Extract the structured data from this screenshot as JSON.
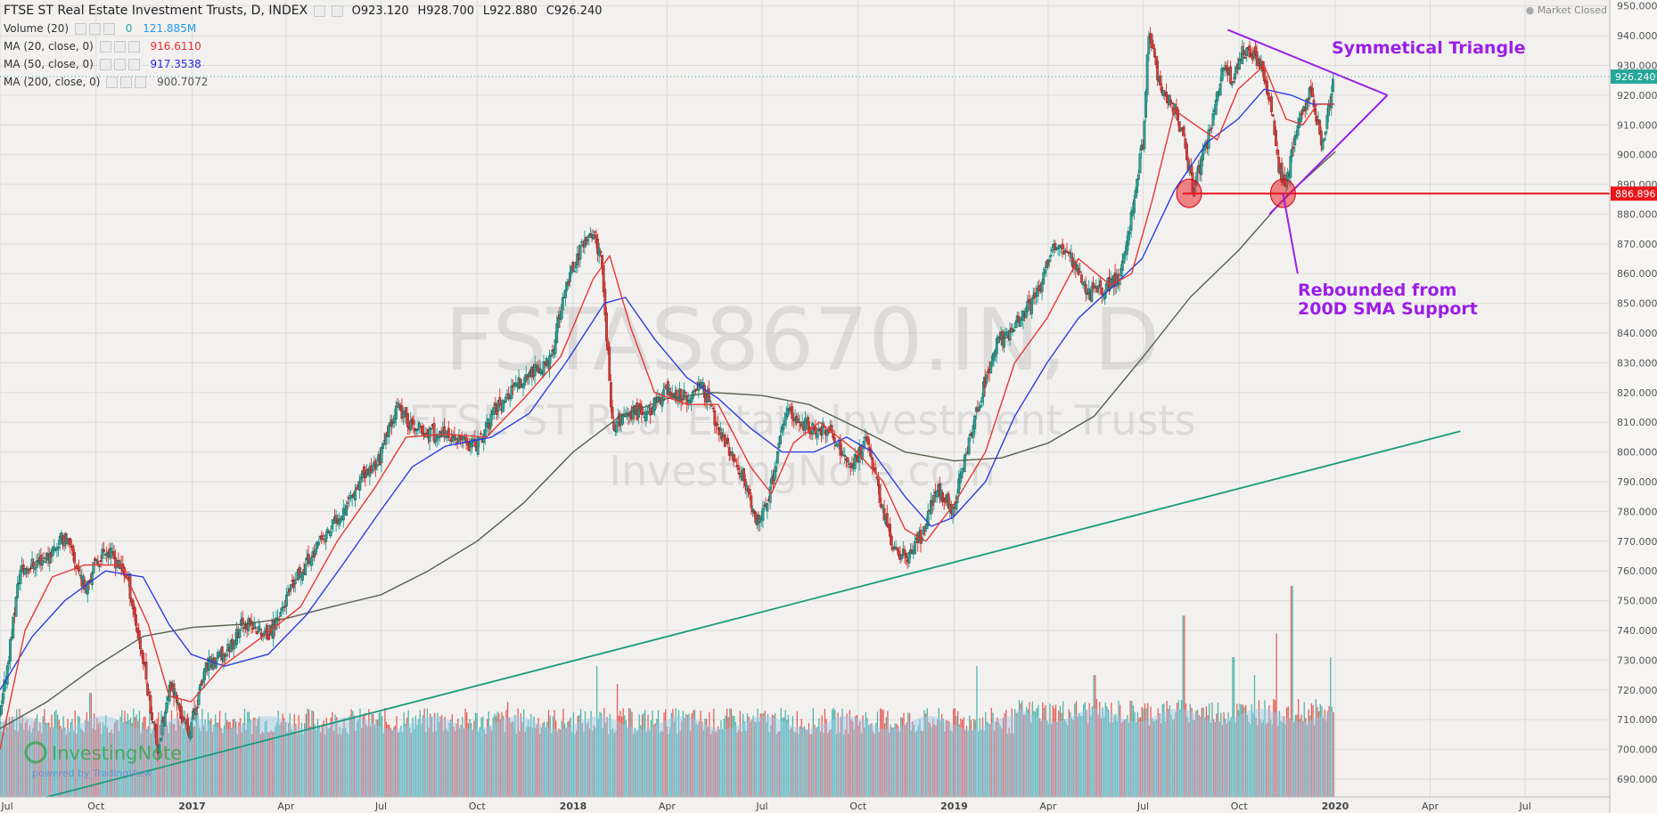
{
  "header": {
    "title": "FTSE ST Real Estate Investment Trusts, D, INDEX",
    "ohlc": [
      "O923.120",
      "H928.700",
      "L922.880",
      "C926.240"
    ],
    "market_status": "Market Closed"
  },
  "legend": [
    {
      "label": "Volume (20)",
      "values": [
        "0",
        "121.885M"
      ],
      "colors": [
        "#26a69a",
        "#2196f3"
      ]
    },
    {
      "label": "MA (20, close, 0)",
      "values": [
        "916.6110"
      ],
      "colors": [
        "#e03030"
      ]
    },
    {
      "label": "MA (50, close, 0)",
      "values": [
        "917.3538"
      ],
      "colors": [
        "#2525e0"
      ]
    },
    {
      "label": "MA (200, close, 0)",
      "values": [
        "900.7072"
      ],
      "colors": [
        "#555555"
      ]
    }
  ],
  "watermark": {
    "symbol": "FSTAS8670.IN, D",
    "name": "FTSE ST Real Estate Investment Trusts",
    "site": "InvestingNote.com"
  },
  "logo": {
    "name": "InvestingNote",
    "sub": "powered by TradingView"
  },
  "annotations": {
    "triangle_label": "Symmetical Triangle",
    "rebound_label": [
      "Rebounded from",
      "200D SMA Support"
    ],
    "support_value": 886.896,
    "current_value": 926.24
  },
  "colors": {
    "up": "#26a69a",
    "down": "#e53935",
    "ma20": "#e53935",
    "ma50": "#2c3ee0",
    "ma200": "#55604f",
    "triangle": "#9b1ee6",
    "support": "#e8151a",
    "trend": "#1a9a7a",
    "volume_ma": "#9ccbe8"
  },
  "chart_data": {
    "type": "candlestick",
    "title": "FTSE ST Real Estate Investment Trusts, D, INDEX",
    "ylim": [
      684,
      952
    ],
    "y_ticks": [
      690,
      700,
      710,
      720,
      730,
      740,
      750,
      760,
      770,
      780,
      790,
      800,
      810,
      820,
      830,
      840,
      850,
      860,
      870,
      880,
      890,
      900,
      910,
      920,
      930,
      940,
      950
    ],
    "x_labels": [
      "Jul",
      "Oct",
      "2017",
      "Apr",
      "Jul",
      "Oct",
      "2018",
      "Apr",
      "Jul",
      "Oct",
      "2019",
      "Apr",
      "Jul",
      "Oct",
      "2020",
      "Apr",
      "Jul"
    ],
    "x_range": [
      "2016-07-01",
      "2020-09-20"
    ],
    "price_path": [
      [
        "2016-07-01",
        710
      ],
      [
        "2016-07-20",
        760
      ],
      [
        "2016-08-15",
        765
      ],
      [
        "2016-09-01",
        772
      ],
      [
        "2016-09-20",
        755
      ],
      [
        "2016-10-10",
        768
      ],
      [
        "2016-10-31",
        758
      ],
      [
        "2016-11-15",
        730
      ],
      [
        "2016-11-29",
        700
      ],
      [
        "2016-12-12",
        722
      ],
      [
        "2016-12-28",
        705
      ],
      [
        "2017-01-15",
        728
      ],
      [
        "2017-02-01",
        732
      ],
      [
        "2017-02-20",
        743
      ],
      [
        "2017-03-15",
        738
      ],
      [
        "2017-04-15",
        760
      ],
      [
        "2017-05-15",
        775
      ],
      [
        "2017-06-10",
        790
      ],
      [
        "2017-06-30",
        798
      ],
      [
        "2017-07-15",
        815
      ],
      [
        "2017-08-01",
        808
      ],
      [
        "2017-09-01",
        805
      ],
      [
        "2017-10-01",
        802
      ],
      [
        "2017-10-20",
        815
      ],
      [
        "2017-11-15",
        825
      ],
      [
        "2017-12-10",
        830
      ],
      [
        "2017-12-25",
        855
      ],
      [
        "2018-01-10",
        870
      ],
      [
        "2018-01-20",
        873
      ],
      [
        "2018-01-28",
        866
      ],
      [
        "2018-02-08",
        808
      ],
      [
        "2018-02-20",
        812
      ],
      [
        "2018-03-15",
        814
      ],
      [
        "2018-04-01",
        821
      ],
      [
        "2018-04-20",
        818
      ],
      [
        "2018-05-05",
        822
      ],
      [
        "2018-05-25",
        804
      ],
      [
        "2018-06-15",
        790
      ],
      [
        "2018-06-26",
        776
      ],
      [
        "2018-07-08",
        785
      ],
      [
        "2018-07-25",
        815
      ],
      [
        "2018-08-15",
        808
      ],
      [
        "2018-09-01",
        808
      ],
      [
        "2018-09-25",
        795
      ],
      [
        "2018-10-10",
        805
      ],
      [
        "2018-10-25",
        780
      ],
      [
        "2018-11-05",
        766
      ],
      [
        "2018-11-20",
        765
      ],
      [
        "2018-12-05",
        775
      ],
      [
        "2018-12-15",
        788
      ],
      [
        "2018-12-31",
        781
      ],
      [
        "2019-01-20",
        810
      ],
      [
        "2019-02-10",
        836
      ],
      [
        "2019-03-05",
        845
      ],
      [
        "2019-03-25",
        855
      ],
      [
        "2019-04-05",
        870
      ],
      [
        "2019-04-20",
        868
      ],
      [
        "2019-05-10",
        853
      ],
      [
        "2019-05-25",
        855
      ],
      [
        "2019-06-10",
        860
      ],
      [
        "2019-06-20",
        880
      ],
      [
        "2019-07-01",
        905
      ],
      [
        "2019-07-06",
        940
      ],
      [
        "2019-07-20",
        920
      ],
      [
        "2019-08-01",
        915
      ],
      [
        "2019-08-10",
        903
      ],
      [
        "2019-08-18",
        888
      ],
      [
        "2019-09-01",
        905
      ],
      [
        "2019-09-15",
        928
      ],
      [
        "2019-09-25",
        925
      ],
      [
        "2019-10-05",
        935
      ],
      [
        "2019-10-20",
        932
      ],
      [
        "2019-10-30",
        920
      ],
      [
        "2019-11-08",
        895
      ],
      [
        "2019-11-15",
        890
      ],
      [
        "2019-11-25",
        908
      ],
      [
        "2019-12-08",
        922
      ],
      [
        "2019-12-20",
        903
      ],
      [
        "2019-12-31",
        926
      ]
    ],
    "ma20_path": [
      [
        "2016-07-01",
        700
      ],
      [
        "2016-07-25",
        740
      ],
      [
        "2016-08-20",
        758
      ],
      [
        "2016-09-20",
        762
      ],
      [
        "2016-10-25",
        762
      ],
      [
        "2016-11-20",
        742
      ],
      [
        "2016-12-10",
        718
      ],
      [
        "2016-12-31",
        716
      ],
      [
        "2017-01-30",
        728
      ],
      [
        "2017-03-10",
        738
      ],
      [
        "2017-04-15",
        748
      ],
      [
        "2017-05-20",
        770
      ],
      [
        "2017-06-25",
        788
      ],
      [
        "2017-07-25",
        805
      ],
      [
        "2017-09-01",
        806
      ],
      [
        "2017-10-10",
        805
      ],
      [
        "2017-11-15",
        818
      ],
      [
        "2017-12-20",
        832
      ],
      [
        "2018-01-20",
        858
      ],
      [
        "2018-02-05",
        866
      ],
      [
        "2018-02-25",
        842
      ],
      [
        "2018-03-20",
        820
      ],
      [
        "2018-04-20",
        816
      ],
      [
        "2018-05-20",
        816
      ],
      [
        "2018-06-20",
        795
      ],
      [
        "2018-07-10",
        786
      ],
      [
        "2018-07-31",
        803
      ],
      [
        "2018-08-25",
        810
      ],
      [
        "2018-09-30",
        800
      ],
      [
        "2018-10-25",
        790
      ],
      [
        "2018-11-15",
        774
      ],
      [
        "2018-12-05",
        770
      ],
      [
        "2018-12-31",
        782
      ],
      [
        "2019-01-31",
        800
      ],
      [
        "2019-02-28",
        830
      ],
      [
        "2019-03-31",
        845
      ],
      [
        "2019-04-30",
        865
      ],
      [
        "2019-05-31",
        856
      ],
      [
        "2019-06-20",
        860
      ],
      [
        "2019-07-10",
        885
      ],
      [
        "2019-07-31",
        915
      ],
      [
        "2019-08-20",
        910
      ],
      [
        "2019-09-10",
        905
      ],
      [
        "2019-09-30",
        922
      ],
      [
        "2019-10-25",
        930
      ],
      [
        "2019-11-15",
        912
      ],
      [
        "2019-12-01",
        910
      ],
      [
        "2019-12-15",
        917
      ],
      [
        "2019-12-31",
        917
      ]
    ],
    "ma50_path": [
      [
        "2016-07-01",
        720
      ],
      [
        "2016-08-01",
        738
      ],
      [
        "2016-09-01",
        750
      ],
      [
        "2016-10-10",
        760
      ],
      [
        "2016-11-15",
        758
      ],
      [
        "2016-12-10",
        742
      ],
      [
        "2016-12-31",
        732
      ],
      [
        "2017-02-01",
        728
      ],
      [
        "2017-03-15",
        732
      ],
      [
        "2017-04-20",
        745
      ],
      [
        "2017-05-25",
        762
      ],
      [
        "2017-06-30",
        780
      ],
      [
        "2017-07-31",
        795
      ],
      [
        "2017-09-01",
        802
      ],
      [
        "2017-10-15",
        805
      ],
      [
        "2017-11-20",
        813
      ],
      [
        "2017-12-25",
        830
      ],
      [
        "2018-01-31",
        850
      ],
      [
        "2018-02-20",
        852
      ],
      [
        "2018-03-20",
        838
      ],
      [
        "2018-04-20",
        825
      ],
      [
        "2018-05-20",
        818
      ],
      [
        "2018-06-20",
        808
      ],
      [
        "2018-07-20",
        800
      ],
      [
        "2018-08-20",
        800
      ],
      [
        "2018-09-20",
        805
      ],
      [
        "2018-10-15",
        800
      ],
      [
        "2018-11-15",
        785
      ],
      [
        "2018-12-10",
        775
      ],
      [
        "2018-12-31",
        778
      ],
      [
        "2019-01-31",
        790
      ],
      [
        "2019-02-28",
        812
      ],
      [
        "2019-03-31",
        830
      ],
      [
        "2019-04-30",
        845
      ],
      [
        "2019-05-31",
        855
      ],
      [
        "2019-06-30",
        865
      ],
      [
        "2019-07-31",
        888
      ],
      [
        "2019-08-31",
        904
      ],
      [
        "2019-09-30",
        912
      ],
      [
        "2019-10-25",
        922
      ],
      [
        "2019-11-20",
        920
      ],
      [
        "2019-12-10",
        917
      ],
      [
        "2019-12-31",
        917
      ]
    ],
    "ma200_path": [
      [
        "2016-07-01",
        707
      ],
      [
        "2016-08-15",
        716
      ],
      [
        "2016-10-01",
        728
      ],
      [
        "2016-11-15",
        738
      ],
      [
        "2017-01-01",
        741
      ],
      [
        "2017-02-15",
        742
      ],
      [
        "2017-04-01",
        744
      ],
      [
        "2017-05-15",
        748
      ],
      [
        "2017-07-01",
        752
      ],
      [
        "2017-08-15",
        760
      ],
      [
        "2017-10-01",
        770
      ],
      [
        "2017-11-15",
        783
      ],
      [
        "2018-01-01",
        800
      ],
      [
        "2018-02-15",
        812
      ],
      [
        "2018-04-01",
        818
      ],
      [
        "2018-05-15",
        820
      ],
      [
        "2018-07-01",
        819
      ],
      [
        "2018-08-15",
        816
      ],
      [
        "2018-10-01",
        808
      ],
      [
        "2018-11-15",
        800
      ],
      [
        "2019-01-01",
        797
      ],
      [
        "2019-02-15",
        798
      ],
      [
        "2019-04-01",
        803
      ],
      [
        "2019-05-15",
        812
      ],
      [
        "2019-07-01",
        832
      ],
      [
        "2019-08-15",
        852
      ],
      [
        "2019-10-01",
        868
      ],
      [
        "2019-11-15",
        886
      ],
      [
        "2020-01-01",
        901
      ]
    ],
    "volume_bars": {
      "spikes": [
        [
          "2018-01-23",
          728
        ],
        [
          "2019-01-22",
          728
        ],
        [
          "2019-05-15",
          722
        ],
        [
          "2019-08-08",
          742
        ],
        [
          "2019-09-25",
          728
        ],
        [
          "2019-10-15",
          722
        ],
        [
          "2019-11-05",
          736
        ],
        [
          "2019-11-20",
          752
        ],
        [
          "2019-12-27",
          728
        ],
        [
          "2016-09-25",
          719
        ],
        [
          "2018-02-12",
          722
        ],
        [
          "2017-10-30",
          716
        ]
      ],
      "baseline_level": 707
    },
    "support_line": {
      "value": 886.896
    },
    "trendline": {
      "start": [
        "2016-08-15",
        684
      ],
      "end": [
        "2020-04-30",
        807
      ]
    },
    "triangle": {
      "upper": {
        "start": [
          "2019-09-20",
          942
        ],
        "end": [
          "2020-02-20",
          920
        ]
      },
      "lower": {
        "start": [
          "2019-10-30",
          880
        ],
        "end": [
          "2020-02-20",
          920
        ]
      }
    },
    "circles": [
      {
        "date": "2019-08-14",
        "value": 887
      },
      {
        "date": "2019-11-12",
        "value": 887
      }
    ],
    "rebound_arrow": {
      "start": [
        "2019-11-12",
        887
      ],
      "end": [
        "2019-11-26",
        860
      ]
    }
  }
}
